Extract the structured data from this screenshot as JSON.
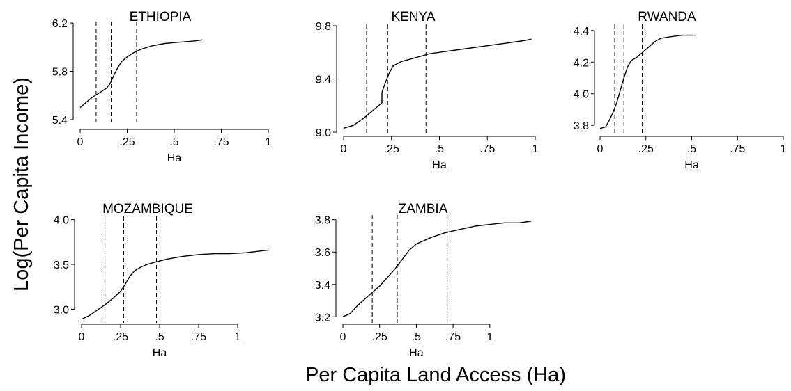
{
  "figure": {
    "ylabel": "Log(Per Capita Income)",
    "xlabel": "Per Capita Land Access (Ha)"
  },
  "chart_data": [
    {
      "type": "line",
      "title": "ETHIOPIA",
      "xlabel": "Ha",
      "ylabel": "",
      "xlim": [
        0,
        1
      ],
      "ylim": [
        5.4,
        6.2
      ],
      "xticks": [
        0,
        0.25,
        0.5,
        0.75,
        1
      ],
      "xtick_labels": [
        "0",
        ".25",
        ".5",
        ".75",
        "1"
      ],
      "yticks": [
        5.4,
        5.8,
        6.2
      ],
      "ytick_labels": [
        "5.4",
        "5.8",
        "6.2"
      ],
      "vlines": [
        0.085,
        0.165,
        0.3
      ],
      "series": [
        {
          "x": [
            0,
            0.03,
            0.06,
            0.1,
            0.14,
            0.16,
            0.18,
            0.2,
            0.22,
            0.25,
            0.28,
            0.32,
            0.38,
            0.45,
            0.52,
            0.6,
            0.65
          ],
          "y": [
            5.5,
            5.54,
            5.58,
            5.62,
            5.66,
            5.7,
            5.77,
            5.83,
            5.88,
            5.92,
            5.95,
            5.98,
            6.01,
            6.03,
            6.04,
            6.05,
            6.06
          ]
        }
      ]
    },
    {
      "type": "line",
      "title": "KENYA",
      "xlabel": "Ha",
      "ylabel": "",
      "xlim": [
        0,
        1
      ],
      "ylim": [
        9.0,
        9.8
      ],
      "xticks": [
        0,
        0.25,
        0.5,
        0.75,
        1
      ],
      "xtick_labels": [
        "0",
        ".25",
        ".5",
        ".75",
        "1"
      ],
      "yticks": [
        9.0,
        9.4,
        9.8
      ],
      "ytick_labels": [
        "9.0",
        "9.4",
        "9.8"
      ],
      "vlines": [
        0.12,
        0.23,
        0.43
      ],
      "series": [
        {
          "x": [
            0,
            0.05,
            0.1,
            0.15,
            0.2,
            0.2,
            0.22,
            0.24,
            0.26,
            0.3,
            0.35,
            0.4,
            0.45,
            0.55,
            0.65,
            0.75,
            0.85,
            0.95,
            0.98
          ],
          "y": [
            9.03,
            9.05,
            9.1,
            9.16,
            9.22,
            9.3,
            9.38,
            9.45,
            9.5,
            9.53,
            9.55,
            9.57,
            9.59,
            9.61,
            9.63,
            9.65,
            9.67,
            9.69,
            9.7
          ]
        }
      ]
    },
    {
      "type": "line",
      "title": "RWANDA",
      "xlabel": "Ha",
      "ylabel": "",
      "xlim": [
        0,
        1
      ],
      "ylim": [
        3.77,
        4.43
      ],
      "xticks": [
        0,
        0.25,
        0.5,
        0.75,
        1
      ],
      "xtick_labels": [
        "0",
        ".25",
        ".5",
        ".75",
        "1"
      ],
      "yticks": [
        3.8,
        4.0,
        4.2,
        4.4
      ],
      "ytick_labels": [
        "3.8",
        "4.0",
        "4.2",
        "4.4"
      ],
      "vlines": [
        0.08,
        0.13,
        0.23
      ],
      "series": [
        {
          "x": [
            0,
            0.03,
            0.05,
            0.07,
            0.09,
            0.11,
            0.13,
            0.15,
            0.17,
            0.2,
            0.23,
            0.26,
            0.3,
            0.33,
            0.38,
            0.45,
            0.52
          ],
          "y": [
            3.78,
            3.79,
            3.83,
            3.88,
            3.94,
            4.02,
            4.1,
            4.17,
            4.21,
            4.23,
            4.26,
            4.29,
            4.33,
            4.35,
            4.36,
            4.37,
            4.37
          ]
        }
      ]
    },
    {
      "type": "line",
      "title": "MOZAMBIQUE",
      "xlabel": "Ha",
      "ylabel": "",
      "xlim": [
        0,
        1.25
      ],
      "ylim": [
        2.88,
        4.02
      ],
      "xticks": [
        0,
        0.25,
        0.5,
        0.75,
        1
      ],
      "xtick_labels": [
        "0",
        ".25",
        ".5",
        ".75",
        "1"
      ],
      "yticks": [
        3.0,
        3.5,
        4.0
      ],
      "ytick_labels": [
        "3.0",
        "3.5",
        "4.0"
      ],
      "vlines": [
        0.15,
        0.27,
        0.48
      ],
      "series": [
        {
          "x": [
            0,
            0.05,
            0.1,
            0.15,
            0.2,
            0.25,
            0.28,
            0.31,
            0.34,
            0.38,
            0.42,
            0.48,
            0.55,
            0.65,
            0.75,
            0.85,
            0.95,
            1.05,
            1.15,
            1.2
          ],
          "y": [
            2.89,
            2.93,
            2.99,
            3.05,
            3.12,
            3.2,
            3.28,
            3.37,
            3.43,
            3.47,
            3.5,
            3.53,
            3.56,
            3.59,
            3.61,
            3.62,
            3.62,
            3.63,
            3.65,
            3.66
          ]
        }
      ]
    },
    {
      "type": "line",
      "title": "ZAMBIA",
      "xlabel": "Ha",
      "ylabel": "",
      "xlim": [
        0,
        1.3
      ],
      "ylim": [
        3.18,
        3.82
      ],
      "xticks": [
        0,
        0.25,
        0.5,
        0.75,
        1
      ],
      "xtick_labels": [
        "0",
        ".25",
        ".5",
        ".75",
        "1"
      ],
      "yticks": [
        3.2,
        3.4,
        3.6,
        3.8
      ],
      "ytick_labels": [
        "3.2",
        "3.4",
        "3.6",
        "3.8"
      ],
      "vlines": [
        0.2,
        0.37,
        0.71
      ],
      "series": [
        {
          "x": [
            0,
            0.05,
            0.1,
            0.15,
            0.2,
            0.25,
            0.3,
            0.35,
            0.4,
            0.45,
            0.5,
            0.6,
            0.7,
            0.8,
            0.9,
            1.0,
            1.1,
            1.2,
            1.28
          ],
          "y": [
            3.2,
            3.22,
            3.27,
            3.31,
            3.35,
            3.39,
            3.44,
            3.49,
            3.55,
            3.61,
            3.65,
            3.69,
            3.72,
            3.74,
            3.76,
            3.77,
            3.78,
            3.78,
            3.79
          ]
        }
      ]
    }
  ]
}
